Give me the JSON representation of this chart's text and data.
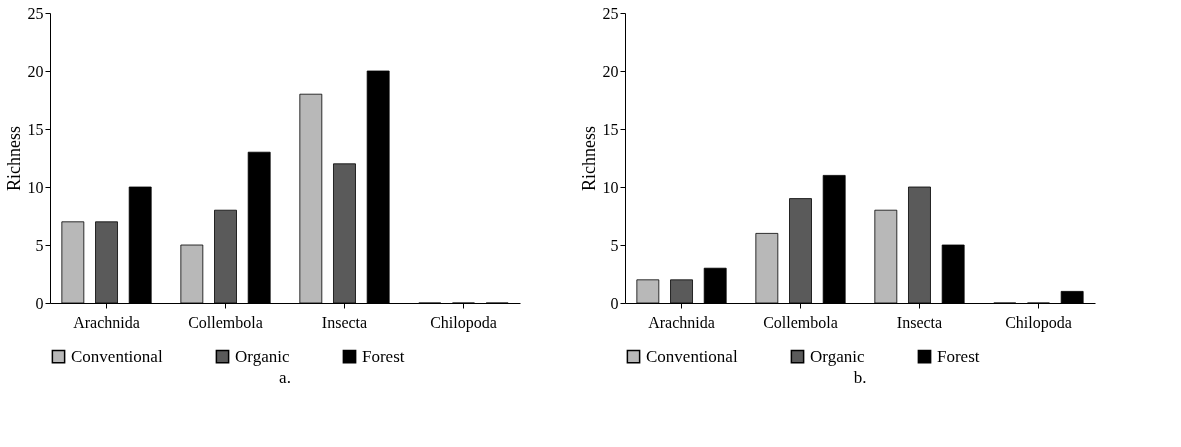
{
  "chart_data": [
    {
      "type": "bar",
      "title": "a.",
      "ylabel": "Richness",
      "categories": [
        "Arachnida",
        "Collembola",
        "Insecta",
        "Chilopoda"
      ],
      "series": [
        {
          "name": "Conventional",
          "color": "#b8b8b8",
          "values": [
            7,
            5,
            18,
            0
          ]
        },
        {
          "name": "Organic",
          "color": "#5a5a5a",
          "values": [
            7,
            8,
            12,
            0
          ]
        },
        {
          "name": "Forest",
          "color": "#000000",
          "values": [
            10,
            13,
            20,
            0
          ]
        }
      ],
      "ylim": [
        0,
        25
      ],
      "yticks": [
        0,
        5,
        10,
        15,
        20,
        25
      ],
      "grid": false,
      "legend": "bottom"
    },
    {
      "type": "bar",
      "title": "b.",
      "ylabel": "Richness",
      "categories": [
        "Arachnida",
        "Collembola",
        "Insecta",
        "Chilopoda"
      ],
      "series": [
        {
          "name": "Conventional",
          "color": "#b8b8b8",
          "values": [
            2,
            6,
            8,
            0
          ]
        },
        {
          "name": "Organic",
          "color": "#5a5a5a",
          "values": [
            2,
            9,
            10,
            0
          ]
        },
        {
          "name": "Forest",
          "color": "#000000",
          "values": [
            3,
            11,
            5,
            1
          ]
        }
      ],
      "ylim": [
        0,
        25
      ],
      "yticks": [
        0,
        5,
        10,
        15,
        20,
        25
      ],
      "grid": false,
      "legend": "bottom"
    }
  ]
}
